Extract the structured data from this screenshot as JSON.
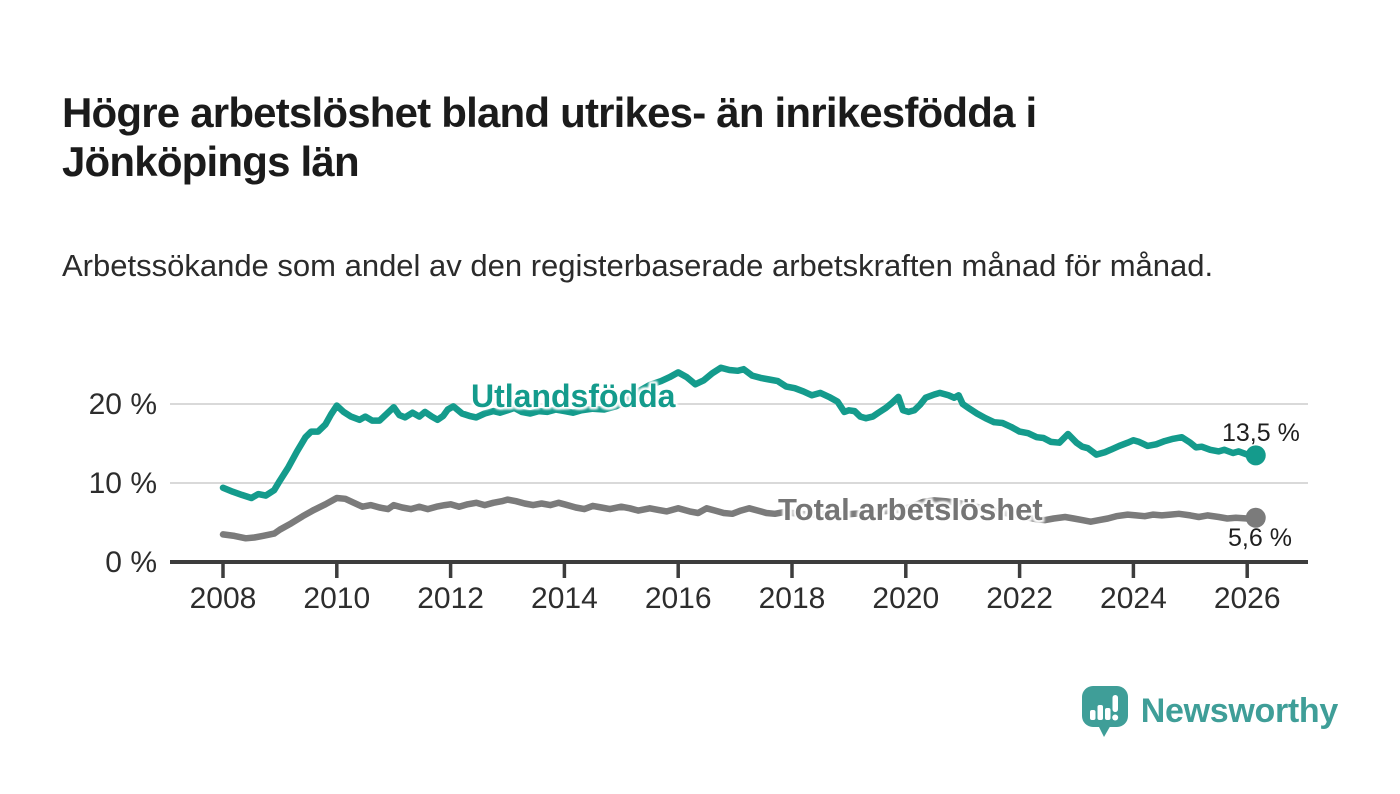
{
  "title": "Högre arbetslöshet bland utrikes- än inrikesfödda i Jönköpings län",
  "subtitle": "Arbetssökande som andel av den registerbaserade arbetskraften månad för månad.",
  "footer": {
    "brand": "Newsworthy",
    "logo_icon": "speech-bubble-bar-chart-icon",
    "brand_color": "#3f9e98"
  },
  "chart_data": {
    "type": "line",
    "title": "Högre arbetslöshet bland utrikes- än inrikesfödda i Jönköpings län",
    "subtitle": "Arbetssökande som andel av den registerbaserade arbetskraften månad för månad.",
    "unit": "%",
    "grid": "horizontal-gridlines-at-10-and-20",
    "legend_position": "inline-labels-on-lines",
    "x_axis": {
      "ticks": [
        "2008",
        "2010",
        "2012",
        "2014",
        "2016",
        "2018",
        "2020",
        "2022",
        "2024",
        "2026"
      ],
      "range": [
        2007.1,
        2027.0
      ]
    },
    "y_axis": {
      "ticks": [
        {
          "value": 0,
          "label": "0 %"
        },
        {
          "value": 10,
          "label": "10 %"
        },
        {
          "value": 20,
          "label": "20 %"
        }
      ],
      "range": [
        0,
        26
      ]
    },
    "colors": {
      "axis": "#3d3d3d",
      "gridline": "#d9d9d9",
      "tick_label": "#2d2d2d"
    },
    "series": [
      {
        "name": "Utlandsfödda",
        "color": "#149b8c",
        "end_label": "13,5 %",
        "end_value": 13.5,
        "points": [
          [
            2008.0,
            9.4
          ],
          [
            2008.17,
            8.9
          ],
          [
            2008.33,
            8.5
          ],
          [
            2008.5,
            8.1
          ],
          [
            2008.62,
            8.6
          ],
          [
            2008.75,
            8.4
          ],
          [
            2008.9,
            9.1
          ],
          [
            2009.0,
            10.3
          ],
          [
            2009.15,
            12.0
          ],
          [
            2009.3,
            14.0
          ],
          [
            2009.45,
            15.8
          ],
          [
            2009.55,
            16.5
          ],
          [
            2009.67,
            16.5
          ],
          [
            2009.8,
            17.4
          ],
          [
            2009.9,
            18.7
          ],
          [
            2010.0,
            19.8
          ],
          [
            2010.12,
            19.0
          ],
          [
            2010.25,
            18.4
          ],
          [
            2010.4,
            18.0
          ],
          [
            2010.5,
            18.4
          ],
          [
            2010.62,
            17.9
          ],
          [
            2010.75,
            17.9
          ],
          [
            2010.87,
            18.7
          ],
          [
            2011.0,
            19.6
          ],
          [
            2011.1,
            18.6
          ],
          [
            2011.2,
            18.3
          ],
          [
            2011.33,
            18.9
          ],
          [
            2011.45,
            18.4
          ],
          [
            2011.55,
            19.0
          ],
          [
            2011.67,
            18.4
          ],
          [
            2011.77,
            18.0
          ],
          [
            2011.87,
            18.5
          ],
          [
            2011.95,
            19.3
          ],
          [
            2012.05,
            19.7
          ],
          [
            2012.2,
            18.8
          ],
          [
            2012.33,
            18.5
          ],
          [
            2012.45,
            18.3
          ],
          [
            2012.6,
            18.8
          ],
          [
            2012.75,
            19.1
          ],
          [
            2012.87,
            18.9
          ],
          [
            2013.0,
            19.2
          ],
          [
            2013.12,
            19.5
          ],
          [
            2013.25,
            19.0
          ],
          [
            2013.4,
            18.8
          ],
          [
            2013.55,
            19.1
          ],
          [
            2013.7,
            19.0
          ],
          [
            2013.85,
            19.3
          ],
          [
            2014.0,
            19.1
          ],
          [
            2014.15,
            18.9
          ],
          [
            2014.3,
            19.2
          ],
          [
            2014.5,
            19.4
          ],
          [
            2014.7,
            19.3
          ],
          [
            2014.9,
            19.7
          ],
          [
            2015.1,
            20.4
          ],
          [
            2015.3,
            21.6
          ],
          [
            2015.5,
            22.4
          ],
          [
            2015.7,
            22.9
          ],
          [
            2015.85,
            23.4
          ],
          [
            2016.0,
            24.0
          ],
          [
            2016.15,
            23.4
          ],
          [
            2016.3,
            22.5
          ],
          [
            2016.45,
            23.0
          ],
          [
            2016.6,
            23.9
          ],
          [
            2016.75,
            24.6
          ],
          [
            2016.9,
            24.3
          ],
          [
            2017.05,
            24.2
          ],
          [
            2017.15,
            24.4
          ],
          [
            2017.3,
            23.6
          ],
          [
            2017.45,
            23.3
          ],
          [
            2017.6,
            23.1
          ],
          [
            2017.75,
            22.9
          ],
          [
            2017.9,
            22.2
          ],
          [
            2018.05,
            22.0
          ],
          [
            2018.2,
            21.6
          ],
          [
            2018.35,
            21.1
          ],
          [
            2018.5,
            21.4
          ],
          [
            2018.65,
            20.9
          ],
          [
            2018.8,
            20.3
          ],
          [
            2018.92,
            19.0
          ],
          [
            2019.0,
            19.2
          ],
          [
            2019.1,
            19.1
          ],
          [
            2019.2,
            18.4
          ],
          [
            2019.3,
            18.2
          ],
          [
            2019.42,
            18.4
          ],
          [
            2019.52,
            18.9
          ],
          [
            2019.65,
            19.5
          ],
          [
            2019.75,
            20.1
          ],
          [
            2019.87,
            20.9
          ],
          [
            2019.95,
            19.2
          ],
          [
            2020.05,
            19.0
          ],
          [
            2020.15,
            19.2
          ],
          [
            2020.25,
            19.9
          ],
          [
            2020.35,
            20.8
          ],
          [
            2020.5,
            21.2
          ],
          [
            2020.6,
            21.4
          ],
          [
            2020.75,
            21.1
          ],
          [
            2020.85,
            20.8
          ],
          [
            2020.93,
            21.1
          ],
          [
            2021.0,
            20.0
          ],
          [
            2021.1,
            19.5
          ],
          [
            2021.25,
            18.8
          ],
          [
            2021.4,
            18.2
          ],
          [
            2021.55,
            17.7
          ],
          [
            2021.7,
            17.6
          ],
          [
            2021.85,
            17.1
          ],
          [
            2022.0,
            16.5
          ],
          [
            2022.15,
            16.3
          ],
          [
            2022.3,
            15.8
          ],
          [
            2022.42,
            15.7
          ],
          [
            2022.55,
            15.2
          ],
          [
            2022.7,
            15.1
          ],
          [
            2022.85,
            16.2
          ],
          [
            2023.0,
            15.1
          ],
          [
            2023.1,
            14.6
          ],
          [
            2023.2,
            14.4
          ],
          [
            2023.35,
            13.6
          ],
          [
            2023.5,
            13.9
          ],
          [
            2023.6,
            14.2
          ],
          [
            2023.75,
            14.7
          ],
          [
            2023.9,
            15.1
          ],
          [
            2024.0,
            15.4
          ],
          [
            2024.1,
            15.2
          ],
          [
            2024.25,
            14.7
          ],
          [
            2024.4,
            14.9
          ],
          [
            2024.55,
            15.3
          ],
          [
            2024.7,
            15.6
          ],
          [
            2024.85,
            15.8
          ],
          [
            2025.0,
            15.1
          ],
          [
            2025.1,
            14.5
          ],
          [
            2025.2,
            14.6
          ],
          [
            2025.35,
            14.2
          ],
          [
            2025.5,
            14.0
          ],
          [
            2025.6,
            14.2
          ],
          [
            2025.75,
            13.8
          ],
          [
            2025.85,
            14.0
          ],
          [
            2026.0,
            13.6
          ],
          [
            2026.15,
            13.5
          ]
        ]
      },
      {
        "name": "Total arbetslöshet",
        "color": "#7b7b7b",
        "end_label": "5,6 %",
        "end_value": 5.6,
        "points": [
          [
            2008.0,
            3.5
          ],
          [
            2008.2,
            3.3
          ],
          [
            2008.4,
            3.0
          ],
          [
            2008.55,
            3.1
          ],
          [
            2008.7,
            3.3
          ],
          [
            2008.9,
            3.6
          ],
          [
            2009.0,
            4.1
          ],
          [
            2009.2,
            4.9
          ],
          [
            2009.4,
            5.8
          ],
          [
            2009.6,
            6.6
          ],
          [
            2009.8,
            7.3
          ],
          [
            2010.0,
            8.1
          ],
          [
            2010.15,
            8.0
          ],
          [
            2010.3,
            7.5
          ],
          [
            2010.45,
            7.0
          ],
          [
            2010.6,
            7.2
          ],
          [
            2010.75,
            6.9
          ],
          [
            2010.9,
            6.7
          ],
          [
            2011.0,
            7.2
          ],
          [
            2011.15,
            6.9
          ],
          [
            2011.3,
            6.7
          ],
          [
            2011.45,
            7.0
          ],
          [
            2011.6,
            6.7
          ],
          [
            2011.75,
            7.0
          ],
          [
            2011.9,
            7.2
          ],
          [
            2012.0,
            7.3
          ],
          [
            2012.15,
            7.0
          ],
          [
            2012.3,
            7.3
          ],
          [
            2012.45,
            7.5
          ],
          [
            2012.6,
            7.2
          ],
          [
            2012.75,
            7.5
          ],
          [
            2012.9,
            7.7
          ],
          [
            2013.0,
            7.9
          ],
          [
            2013.15,
            7.7
          ],
          [
            2013.3,
            7.4
          ],
          [
            2013.45,
            7.2
          ],
          [
            2013.6,
            7.4
          ],
          [
            2013.75,
            7.2
          ],
          [
            2013.9,
            7.5
          ],
          [
            2014.0,
            7.3
          ],
          [
            2014.2,
            6.9
          ],
          [
            2014.35,
            6.7
          ],
          [
            2014.5,
            7.1
          ],
          [
            2014.65,
            6.9
          ],
          [
            2014.8,
            6.7
          ],
          [
            2015.0,
            7.0
          ],
          [
            2015.15,
            6.8
          ],
          [
            2015.3,
            6.5
          ],
          [
            2015.5,
            6.8
          ],
          [
            2015.65,
            6.6
          ],
          [
            2015.8,
            6.4
          ],
          [
            2016.0,
            6.8
          ],
          [
            2016.2,
            6.4
          ],
          [
            2016.35,
            6.2
          ],
          [
            2016.5,
            6.8
          ],
          [
            2016.65,
            6.5
          ],
          [
            2016.8,
            6.2
          ],
          [
            2016.95,
            6.1
          ],
          [
            2017.1,
            6.5
          ],
          [
            2017.25,
            6.8
          ],
          [
            2017.4,
            6.5
          ],
          [
            2017.55,
            6.2
          ],
          [
            2017.7,
            6.1
          ],
          [
            2017.85,
            6.3
          ],
          [
            2018.0,
            6.2
          ],
          [
            2018.3,
            6.0
          ],
          [
            2018.6,
            6.1
          ],
          [
            2018.9,
            6.0
          ],
          [
            2019.1,
            6.1
          ],
          [
            2019.3,
            6.2
          ],
          [
            2019.6,
            6.4
          ],
          [
            2019.9,
            6.6
          ],
          [
            2020.1,
            7.0
          ],
          [
            2020.3,
            7.6
          ],
          [
            2020.5,
            7.8
          ],
          [
            2020.7,
            7.7
          ],
          [
            2020.9,
            7.5
          ],
          [
            2021.1,
            7.2
          ],
          [
            2021.3,
            6.9
          ],
          [
            2021.6,
            6.4
          ],
          [
            2021.9,
            6.0
          ],
          [
            2022.1,
            5.7
          ],
          [
            2022.3,
            5.4
          ],
          [
            2022.45,
            5.3
          ],
          [
            2022.6,
            5.5
          ],
          [
            2022.8,
            5.7
          ],
          [
            2022.95,
            5.5
          ],
          [
            2023.1,
            5.3
          ],
          [
            2023.25,
            5.1
          ],
          [
            2023.4,
            5.3
          ],
          [
            2023.55,
            5.5
          ],
          [
            2023.7,
            5.8
          ],
          [
            2023.9,
            6.0
          ],
          [
            2024.05,
            5.9
          ],
          [
            2024.2,
            5.8
          ],
          [
            2024.35,
            6.0
          ],
          [
            2024.5,
            5.9
          ],
          [
            2024.65,
            6.0
          ],
          [
            2024.8,
            6.1
          ],
          [
            2025.0,
            5.9
          ],
          [
            2025.15,
            5.7
          ],
          [
            2025.3,
            5.9
          ],
          [
            2025.5,
            5.7
          ],
          [
            2025.65,
            5.5
          ],
          [
            2025.8,
            5.6
          ],
          [
            2026.0,
            5.5
          ],
          [
            2026.15,
            5.6
          ]
        ]
      }
    ]
  }
}
